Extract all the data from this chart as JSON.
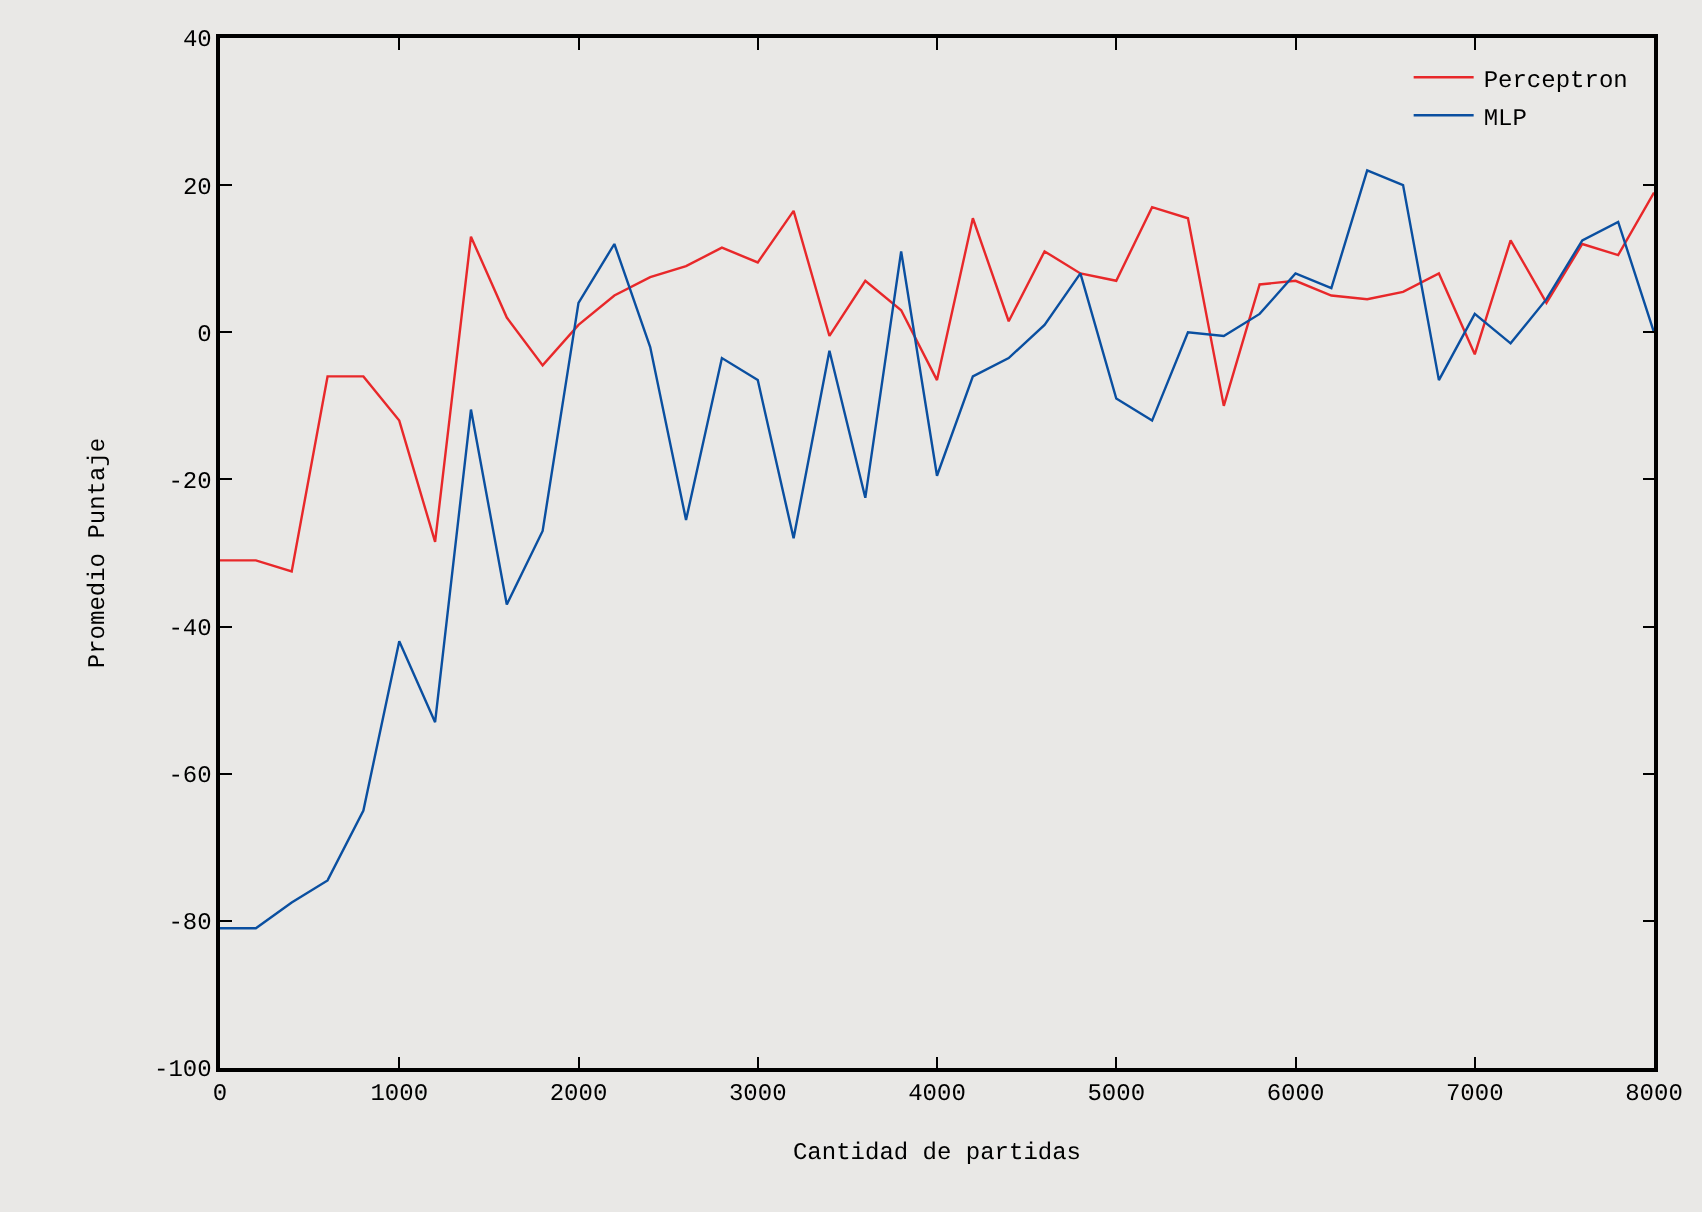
{
  "chart_data": {
    "type": "line",
    "xlabel": "Cantidad de partidas",
    "ylabel": "Promedio Puntaje",
    "x": [
      0,
      200,
      400,
      600,
      800,
      1000,
      1200,
      1400,
      1600,
      1800,
      2000,
      2200,
      2400,
      2600,
      2800,
      3000,
      3200,
      3400,
      3600,
      3800,
      4000,
      4200,
      4400,
      4600,
      4800,
      5000,
      5200,
      5400,
      5600,
      5800,
      6000,
      6200,
      6400,
      6600,
      6800,
      7000,
      7200,
      7400,
      7600,
      7800,
      8000
    ],
    "series": [
      {
        "name": "Perceptron",
        "color": "#e8282a",
        "values": [
          -31,
          -31,
          -32.5,
          -6,
          -6,
          -12,
          -28.5,
          13,
          2,
          -4.5,
          1,
          5,
          7.5,
          9,
          11.5,
          9.5,
          16.5,
          -0.5,
          7,
          3,
          -6.5,
          15.5,
          1.5,
          11,
          8,
          7,
          17,
          15.5,
          -10,
          6.5,
          7,
          5,
          4.5,
          5.5,
          8,
          -3,
          12.5,
          4,
          12,
          10.5,
          19
        ]
      },
      {
        "name": "MLP",
        "color": "#0a4fa0",
        "values": [
          -81,
          -81,
          -77.5,
          -74.5,
          -65,
          -42,
          -53,
          -10.5,
          -37,
          -27,
          4,
          12,
          -2,
          -25.5,
          -3.5,
          -6.5,
          -28,
          -2.5,
          -22.5,
          11,
          -19.5,
          -6,
          -3.5,
          1,
          8,
          -9,
          -12,
          0,
          -0.5,
          2.5,
          8,
          6,
          22,
          20,
          -6.5,
          2.5,
          -1.5,
          4.5,
          12.5,
          15,
          0
        ]
      }
    ],
    "xlim": [
      0,
      8000
    ],
    "xticks": [
      0,
      1000,
      2000,
      3000,
      4000,
      5000,
      6000,
      7000,
      8000
    ],
    "ylim": [
      -100,
      40
    ],
    "yticks": [
      -100,
      -80,
      -60,
      -40,
      -20,
      0,
      20,
      40
    ],
    "grid": false,
    "legend": "top right",
    "marker": "none",
    "line_style": "solid"
  }
}
